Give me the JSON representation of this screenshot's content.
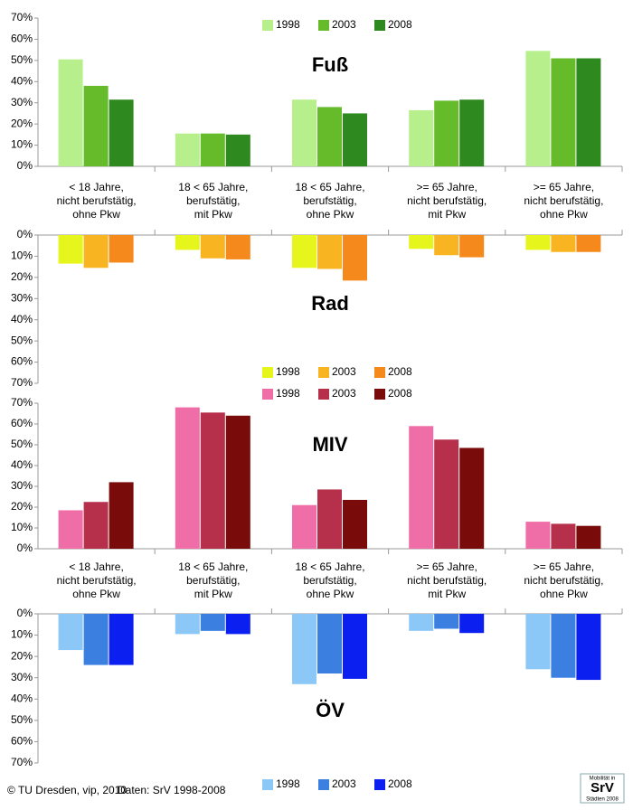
{
  "chart_data": [
    {
      "type": "bar",
      "title": "Fuß",
      "categories": [
        "< 18 Jahre,\nnicht berufstätig,\nohne Pkw",
        "18 < 65 Jahre,\nberufstätig,\nmit Pkw",
        "18 < 65 Jahre,\nberufstätig,\nohne Pkw",
        ">= 65 Jahre,\nnicht berufstätig,\nmit Pkw",
        ">= 65 Jahre,\nnicht berufstätig,\nohne Pkw"
      ],
      "series": [
        {
          "name": "1998",
          "color": "#b6ef8c",
          "values": [
            50.5,
            15.5,
            31.5,
            26.5,
            54.5
          ]
        },
        {
          "name": "2003",
          "color": "#66bb2b",
          "values": [
            38,
            15.5,
            28,
            31,
            51
          ]
        },
        {
          "name": "2008",
          "color": "#2e8a1e",
          "values": [
            31.5,
            15,
            25,
            31.5,
            51
          ]
        }
      ],
      "ylim": [
        0,
        70
      ],
      "y_inverted": false,
      "legend": "top",
      "yticks": [
        {
          "value": 0,
          "label": "0%"
        },
        {
          "value": 10,
          "label": "10%"
        },
        {
          "value": 20,
          "label": "20%"
        },
        {
          "value": 30,
          "label": "30%"
        },
        {
          "value": 40,
          "label": "40%"
        },
        {
          "value": 50,
          "label": "50%"
        },
        {
          "value": 60,
          "label": "60%"
        },
        {
          "value": 70,
          "label": "70%"
        }
      ]
    },
    {
      "type": "bar",
      "title": "Rad",
      "series": [
        {
          "name": "1998",
          "color": "#e6f51c",
          "values": [
            13.5,
            7,
            15.5,
            6.5,
            7
          ]
        },
        {
          "name": "2003",
          "color": "#f8b521",
          "values": [
            15.5,
            11,
            16,
            9.5,
            8
          ]
        },
        {
          "name": "2008",
          "color": "#f6891b",
          "values": [
            13,
            11.5,
            21.5,
            10.5,
            8
          ]
        }
      ],
      "ylim": [
        0,
        70
      ],
      "y_inverted": true,
      "legend": "bottom",
      "yticks": [
        {
          "value": 0,
          "label": "0%"
        },
        {
          "value": 10,
          "label": "10%"
        },
        {
          "value": 20,
          "label": "20%"
        },
        {
          "value": 30,
          "label": "30%"
        },
        {
          "value": 40,
          "label": "40%"
        },
        {
          "value": 50,
          "label": "50%"
        },
        {
          "value": 60,
          "label": "60%"
        },
        {
          "value": 70,
          "label": "70%"
        }
      ]
    },
    {
      "type": "bar",
      "title": "MIV",
      "categories": [
        "< 18 Jahre,\nnicht berufstätig,\nohne Pkw",
        "18 < 65 Jahre,\nberufstätig,\nmit Pkw",
        "18 < 65 Jahre,\nberufstätig,\nohne Pkw",
        ">= 65 Jahre,\nnicht berufstätig,\nmit Pkw",
        ">= 65 Jahre,\nnicht berufstätig,\nohne Pkw"
      ],
      "series": [
        {
          "name": "1998",
          "color": "#f06ea8",
          "values": [
            18.5,
            68,
            21,
            59,
            13
          ]
        },
        {
          "name": "2003",
          "color": "#b62f4b",
          "values": [
            22.5,
            65.5,
            28.5,
            52.5,
            12
          ]
        },
        {
          "name": "2008",
          "color": "#7a0b0b",
          "values": [
            32,
            64,
            23.5,
            48.5,
            11
          ]
        }
      ],
      "ylim": [
        0,
        70
      ],
      "y_inverted": false,
      "legend": "top",
      "yticks": [
        {
          "value": 0,
          "label": "0%"
        },
        {
          "value": 10,
          "label": "10%"
        },
        {
          "value": 20,
          "label": "20%"
        },
        {
          "value": 30,
          "label": "30%"
        },
        {
          "value": 40,
          "label": "40%"
        },
        {
          "value": 50,
          "label": "50%"
        },
        {
          "value": 60,
          "label": "60%"
        },
        {
          "value": 70,
          "label": "70%"
        }
      ]
    },
    {
      "type": "bar",
      "title": "ÖV",
      "series": [
        {
          "name": "1998",
          "color": "#8cc8f7",
          "values": [
            17,
            9.5,
            33,
            8,
            26
          ]
        },
        {
          "name": "2003",
          "color": "#3b7fe0",
          "values": [
            24,
            8,
            28,
            7,
            30
          ]
        },
        {
          "name": "2008",
          "color": "#0b1ff0",
          "values": [
            24,
            9.5,
            30.5,
            9,
            31
          ]
        }
      ],
      "ylim": [
        0,
        70
      ],
      "y_inverted": true,
      "legend": "below",
      "yticks": [
        {
          "value": 0,
          "label": "0%"
        },
        {
          "value": 10,
          "label": "10%"
        },
        {
          "value": 20,
          "label": "20%"
        },
        {
          "value": 30,
          "label": "30%"
        },
        {
          "value": 40,
          "label": "40%"
        },
        {
          "value": 50,
          "label": "50%"
        },
        {
          "value": 60,
          "label": "60%"
        },
        {
          "value": 70,
          "label": "70%"
        }
      ]
    }
  ],
  "footer": {
    "copyright": "© TU Dresden, vip, 2010",
    "source": "Daten: SrV 1998-2008",
    "logo": [
      "Mobilität in",
      "SrV",
      "Städten 2008"
    ]
  }
}
